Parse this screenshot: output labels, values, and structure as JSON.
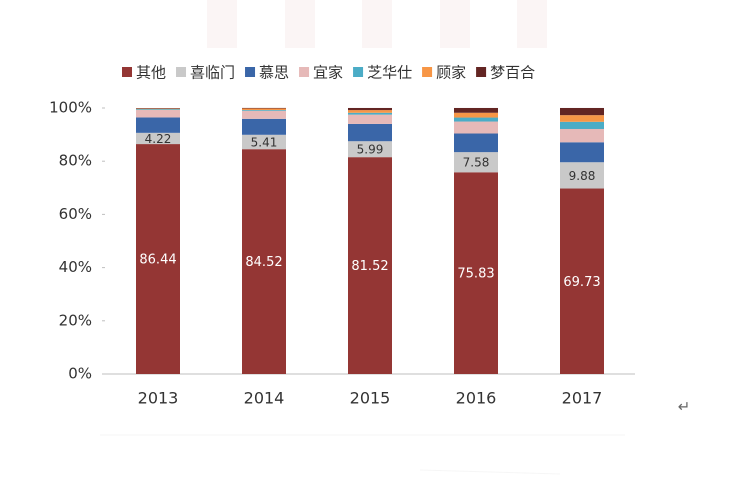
{
  "chart_data": {
    "type": "stacked_bar",
    "categories": [
      "2013",
      "2014",
      "2015",
      "2016",
      "2017"
    ],
    "series": [
      {
        "name": "其他",
        "color": "#943634",
        "values": [
          86.44,
          84.52,
          81.52,
          75.83,
          69.73
        ]
      },
      {
        "name": "喜临门",
        "color": "#c9c9c9",
        "values": [
          4.22,
          5.41,
          5.99,
          7.58,
          9.88
        ]
      },
      {
        "name": "慕思",
        "color": "#3a66a8",
        "values": [
          5.8,
          6,
          6.5,
          7,
          7.5
        ]
      },
      {
        "name": "宜家",
        "color": "#e6b9b8",
        "values": [
          2.8,
          3,
          3.5,
          4.5,
          5
        ]
      },
      {
        "name": "芝华仕",
        "color": "#4bacc6",
        "values": [
          0.3,
          0.3,
          0.7,
          1.5,
          2.7
        ]
      },
      {
        "name": "顾家",
        "color": "#f79646",
        "values": [
          0.2,
          0.6,
          1,
          1.8,
          2.5
        ]
      },
      {
        "name": "梦百合",
        "color": "#632523",
        "values": [
          0.2,
          0.2,
          0.8,
          1.8,
          2.7
        ]
      }
    ],
    "labeled_series": [
      0,
      1
    ],
    "ylim": [
      0,
      100
    ],
    "yticks": [
      {
        "value": 0,
        "label": "0%"
      },
      {
        "value": 20,
        "label": "20%"
      },
      {
        "value": 40,
        "label": "40%"
      },
      {
        "value": 60,
        "label": "60%"
      },
      {
        "value": 80,
        "label": "80%"
      },
      {
        "value": 100,
        "label": "100%"
      }
    ],
    "grid": false,
    "legend": "top"
  },
  "paragraph_mark": "↵"
}
